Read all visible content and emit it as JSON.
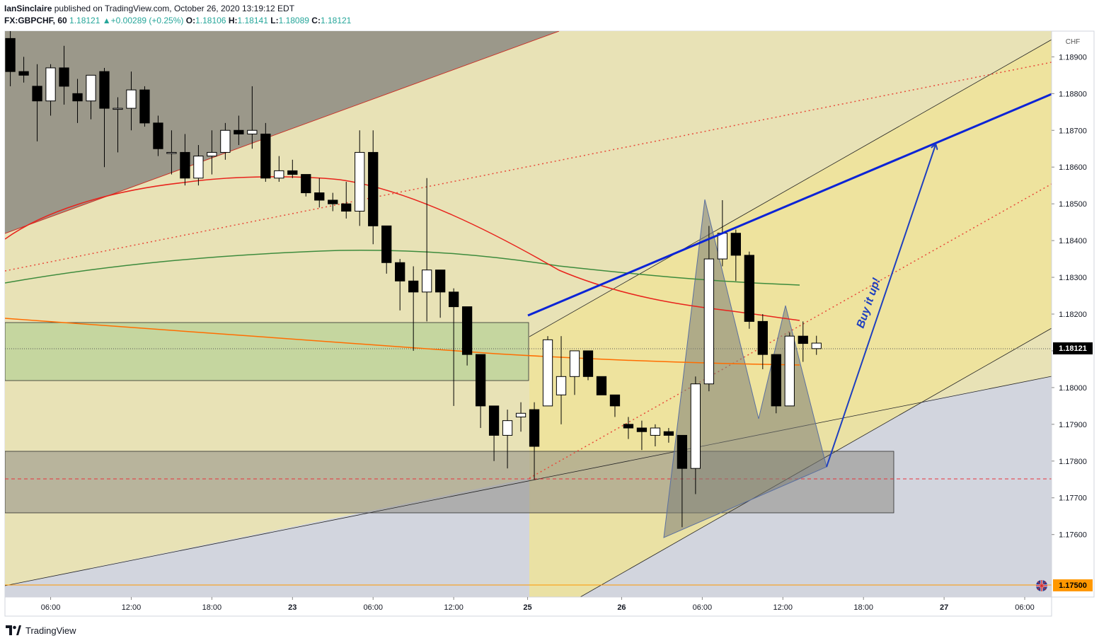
{
  "header": {
    "publisher": "IanSinclaire",
    "published_text": "published on TradingView.com, October 26, 2020 13:19:12 EDT",
    "symbol": "FX:GBPCHF, 60",
    "last": "1.18121",
    "change": "+0.00289 (+0.25%)",
    "o_label": "O:",
    "o": "1.18106",
    "h_label": "H:",
    "h": "1.18141",
    "l_label": "L:",
    "l": "1.18089",
    "c_label": "C:",
    "c": "1.18121"
  },
  "footer": {
    "brand": "TradingView"
  },
  "colors": {
    "up_body": "#ffffff",
    "down_body": "#000000",
    "wick": "#000000",
    "ma_red": "#e8231c",
    "ma_green": "#3d8b3d",
    "ma_orange": "#ff6d00",
    "trend_blue": "#0b24d6",
    "arrow_blue": "#1e3fbf"
  },
  "chart_data": {
    "type": "candlestick",
    "currency_label": "CHF",
    "current_price_label": "1.18121",
    "level_label": "1.17500",
    "annotation": "Buy it up!",
    "y_ticks": [
      "1.18900",
      "1.18800",
      "1.18700",
      "1.18600",
      "1.18500",
      "1.18400",
      "1.18300",
      "1.18200",
      "1.18100",
      "1.18000",
      "1.17900",
      "1.17800",
      "1.17700",
      "1.17600"
    ],
    "ylim": [
      1.1743,
      1.1897
    ],
    "x_ticks": [
      {
        "label": "06:00",
        "i": 3
      },
      {
        "label": "12:00",
        "i": 9
      },
      {
        "label": "18:00",
        "i": 15
      },
      {
        "label": "23",
        "i": 21
      },
      {
        "label": "06:00",
        "i": 27
      },
      {
        "label": "12:00",
        "i": 33
      },
      {
        "label": "25",
        "i": 38.5
      },
      {
        "label": "26",
        "i": 45.5
      },
      {
        "label": "06:00",
        "i": 51.5
      },
      {
        "label": "12:00",
        "i": 57.5
      },
      {
        "label": "18:00",
        "i": 63.5
      },
      {
        "label": "27",
        "i": 69.5
      },
      {
        "label": "06:00",
        "i": 75.5
      }
    ],
    "x_range": [
      -0.4,
      77.5
    ],
    "candles": [
      [
        1.1895,
        1.1898,
        1.1882,
        1.1886
      ],
      [
        1.1886,
        1.189,
        1.1883,
        1.1885
      ],
      [
        1.1882,
        1.1888,
        1.1867,
        1.1878
      ],
      [
        1.1878,
        1.1888,
        1.1874,
        1.1887
      ],
      [
        1.1887,
        1.1893,
        1.1877,
        1.1882
      ],
      [
        1.188,
        1.1884,
        1.1872,
        1.1878
      ],
      [
        1.1878,
        1.1885,
        1.1873,
        1.1885
      ],
      [
        1.1886,
        1.1887,
        1.186,
        1.1876
      ],
      [
        1.1876,
        1.1879,
        1.1864,
        1.1876
      ],
      [
        1.1876,
        1.1886,
        1.187,
        1.1881
      ],
      [
        1.1881,
        1.1882,
        1.1871,
        1.1872
      ],
      [
        1.1872,
        1.1874,
        1.1863,
        1.1865
      ],
      [
        1.1864,
        1.187,
        1.1858,
        1.1864
      ],
      [
        1.1864,
        1.1869,
        1.1855,
        1.1857
      ],
      [
        1.1857,
        1.1866,
        1.1855,
        1.1863
      ],
      [
        1.1863,
        1.187,
        1.1858,
        1.1864
      ],
      [
        1.1864,
        1.1872,
        1.1862,
        1.187
      ],
      [
        1.187,
        1.1874,
        1.1866,
        1.1869
      ],
      [
        1.1869,
        1.1882,
        1.1865,
        1.187
      ],
      [
        1.1869,
        1.1872,
        1.1856,
        1.1857
      ],
      [
        1.1857,
        1.1863,
        1.1856,
        1.1859
      ],
      [
        1.1859,
        1.1862,
        1.1857,
        1.1858
      ],
      [
        1.1858,
        1.1858,
        1.1852,
        1.1853
      ],
      [
        1.1853,
        1.1857,
        1.1849,
        1.1851
      ],
      [
        1.1851,
        1.1853,
        1.1848,
        1.185
      ],
      [
        1.185,
        1.1856,
        1.1846,
        1.1848
      ],
      [
        1.1848,
        1.187,
        1.1844,
        1.1864
      ],
      [
        1.1864,
        1.187,
        1.1839,
        1.1844
      ],
      [
        1.1844,
        1.1844,
        1.1831,
        1.1834
      ],
      [
        1.1834,
        1.1835,
        1.1821,
        1.1829
      ],
      [
        1.1829,
        1.1833,
        1.181,
        1.1826
      ],
      [
        1.1826,
        1.1857,
        1.1818,
        1.1832
      ],
      [
        1.1832,
        1.1832,
        1.1819,
        1.1826
      ],
      [
        1.1826,
        1.1827,
        1.1795,
        1.1822
      ],
      [
        1.1822,
        1.1822,
        1.1806,
        1.1809
      ],
      [
        1.1809,
        1.1809,
        1.1789,
        1.1795
      ],
      [
        1.1795,
        1.1795,
        1.178,
        1.1787
      ],
      [
        1.1787,
        1.1794,
        1.1778,
        1.1791
      ],
      [
        1.1792,
        1.1796,
        1.1788,
        1.1793
      ],
      [
        1.1794,
        1.1796,
        1.1775,
        1.1784
      ],
      [
        1.1795,
        1.1814,
        1.1795,
        1.1813
      ],
      [
        1.1798,
        1.1814,
        1.179,
        1.1803
      ],
      [
        1.1803,
        1.181,
        1.1798,
        1.181
      ],
      [
        1.181,
        1.181,
        1.1802,
        1.1803
      ],
      [
        1.1803,
        1.1803,
        1.1798,
        1.1798
      ],
      [
        1.1798,
        1.1798,
        1.1792,
        1.1795
      ],
      [
        1.179,
        1.1792,
        1.1786,
        1.1789
      ],
      [
        1.1789,
        1.1791,
        1.1783,
        1.1788
      ],
      [
        1.1787,
        1.179,
        1.1784,
        1.1789
      ],
      [
        1.1788,
        1.1789,
        1.1785,
        1.1787
      ],
      [
        1.1787,
        1.1787,
        1.1762,
        1.1778
      ],
      [
        1.1778,
        1.1803,
        1.1771,
        1.1801
      ],
      [
        1.1801,
        1.1844,
        1.1799,
        1.1835
      ],
      [
        1.1835,
        1.1851,
        1.1833,
        1.1842
      ],
      [
        1.1842,
        1.1843,
        1.1829,
        1.1836
      ],
      [
        1.1836,
        1.1837,
        1.1816,
        1.1818
      ],
      [
        1.1818,
        1.182,
        1.1805,
        1.1809
      ],
      [
        1.1809,
        1.1809,
        1.1793,
        1.1795
      ],
      [
        1.1795,
        1.1815,
        1.1795,
        1.1814
      ],
      [
        1.1814,
        1.1818,
        1.1807,
        1.1812
      ],
      [
        1.18106,
        1.18141,
        1.18089,
        1.18121
      ]
    ]
  }
}
